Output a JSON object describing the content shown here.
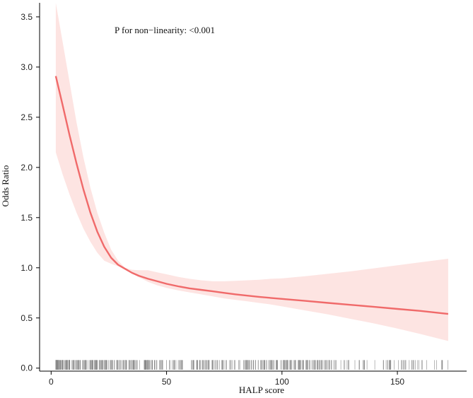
{
  "chart_data": {
    "type": "line",
    "title": "",
    "xlabel": "HALP score",
    "ylabel": "Odds Ratio",
    "annotation": "P for non−linearity: <0.001",
    "xlim": [
      -5,
      180
    ],
    "ylim": [
      -0.03,
      3.64
    ],
    "x_ticks": [
      0,
      50,
      100,
      150
    ],
    "y_ticks": [
      0.0,
      0.5,
      1.0,
      1.5,
      2.0,
      2.5,
      3.0,
      3.5
    ],
    "grid": false,
    "legend": "none",
    "colors": {
      "line": "#f06a6a",
      "band": "#fde4e2",
      "rug": "#888888",
      "axis": "#000000"
    },
    "series": [
      {
        "x": [
          2,
          5,
          8,
          11,
          14,
          17,
          20,
          23,
          26,
          29,
          32,
          35,
          38,
          42,
          46,
          50,
          55,
          60,
          65,
          70,
          75,
          80,
          85,
          90,
          95,
          100,
          110,
          120,
          130,
          140,
          150,
          160,
          172
        ],
        "y": [
          2.91,
          2.62,
          2.32,
          2.04,
          1.78,
          1.55,
          1.36,
          1.21,
          1.1,
          1.03,
          0.99,
          0.95,
          0.92,
          0.89,
          0.865,
          0.84,
          0.815,
          0.795,
          0.78,
          0.765,
          0.75,
          0.735,
          0.722,
          0.71,
          0.7,
          0.69,
          0.67,
          0.65,
          0.63,
          0.61,
          0.59,
          0.57,
          0.54
        ],
        "ci_lower": [
          2.15,
          1.93,
          1.73,
          1.55,
          1.39,
          1.26,
          1.15,
          1.07,
          1.04,
          1.015,
          0.98,
          0.945,
          0.905,
          0.86,
          0.825,
          0.8,
          0.775,
          0.755,
          0.735,
          0.715,
          0.695,
          0.68,
          0.665,
          0.65,
          0.635,
          0.615,
          0.575,
          0.535,
          0.49,
          0.445,
          0.395,
          0.34,
          0.27
        ],
        "ci_upper": [
          3.64,
          3.25,
          2.85,
          2.45,
          2.1,
          1.8,
          1.55,
          1.35,
          1.18,
          1.07,
          1.0,
          0.98,
          0.975,
          0.975,
          0.955,
          0.935,
          0.91,
          0.89,
          0.875,
          0.865,
          0.865,
          0.87,
          0.875,
          0.88,
          0.89,
          0.895,
          0.915,
          0.94,
          0.965,
          0.995,
          1.025,
          1.055,
          1.09
        ]
      }
    ],
    "rug": {
      "range": [
        2,
        172
      ],
      "count": 480,
      "description_hidden": true
    }
  }
}
